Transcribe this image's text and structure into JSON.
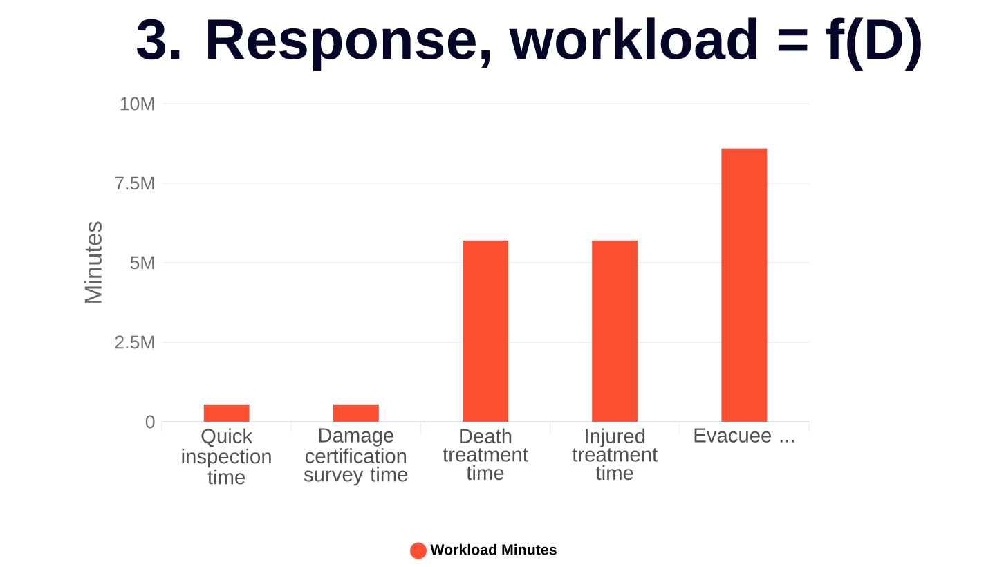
{
  "chart_data": {
    "type": "bar",
    "title": "3. Response, workload = f(D)",
    "ylabel": "Minutes",
    "categories": [
      "Quick inspection time",
      "Damage certification survey time",
      "Death treatment time",
      "Injured treatment time",
      "Evacuee ..."
    ],
    "series": [
      {
        "name": "Workload Minutes",
        "color": "#ff5033",
        "values": [
          550000,
          550000,
          5700000,
          5700000,
          8600000
        ]
      }
    ],
    "ylim": [
      0,
      10000000
    ],
    "yticks": [
      0,
      {
        "value": 2500000,
        "label": "2.5M"
      },
      {
        "value": 5000000,
        "label": "5M"
      },
      {
        "value": 7500000,
        "label": "7.5M"
      },
      {
        "value": 10000000,
        "label": "10M"
      }
    ],
    "grid": "y",
    "legend": "bottom"
  }
}
